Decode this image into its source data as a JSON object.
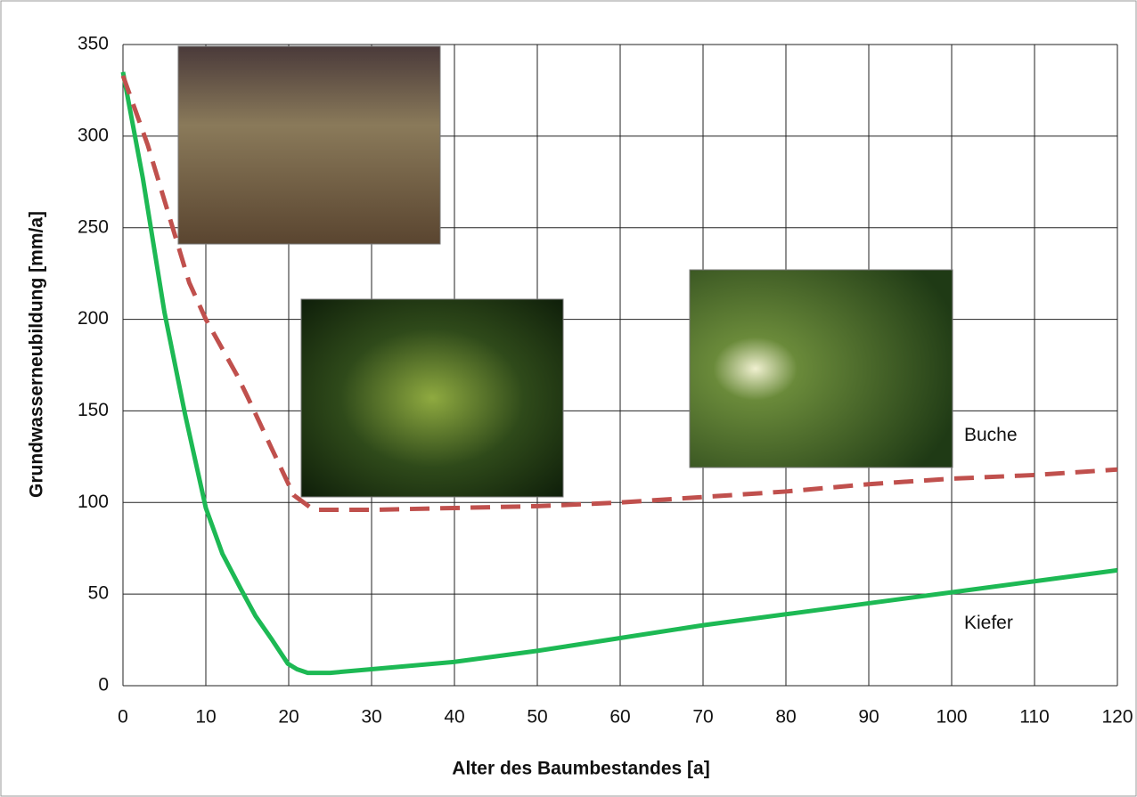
{
  "chart_data": {
    "type": "line",
    "x_label": "Alter des Baumbestandes [a]",
    "y_label": "Grundwasserneubildung [mm/a]",
    "xlim": [
      0,
      120
    ],
    "xticks": [
      0,
      10,
      20,
      30,
      40,
      50,
      60,
      70,
      80,
      90,
      100,
      110,
      120
    ],
    "ylim": [
      0,
      350
    ],
    "yticks": [
      0,
      50,
      100,
      150,
      200,
      250,
      300,
      350
    ],
    "grid": true,
    "series": [
      {
        "name": "Kiefer",
        "color": "#1db954",
        "dash": false,
        "x": [
          0,
          2.4,
          5,
          7.5,
          10,
          12,
          14.2,
          16,
          18,
          19.9,
          21,
          22.3,
          25,
          30,
          40,
          50,
          60,
          70,
          80,
          90,
          100,
          110,
          120
        ],
        "values": [
          335,
          277,
          204,
          148,
          97,
          72,
          53,
          38,
          25,
          12,
          9,
          7,
          7,
          9,
          13,
          19,
          26,
          33,
          39,
          45,
          51,
          57,
          63
        ]
      },
      {
        "name": "Buche",
        "color": "#c0504d",
        "dash": true,
        "x": [
          0,
          3,
          5,
          8,
          10,
          13.7,
          15,
          18,
          20.6,
          23,
          25,
          30,
          40,
          50,
          60,
          70,
          80,
          90,
          100,
          110,
          120
        ],
        "values": [
          333,
          295,
          265,
          220,
          200,
          170,
          158,
          129,
          104,
          96,
          96,
          96,
          97,
          98,
          100,
          103,
          106,
          110,
          113,
          115,
          118
        ]
      }
    ]
  }
}
